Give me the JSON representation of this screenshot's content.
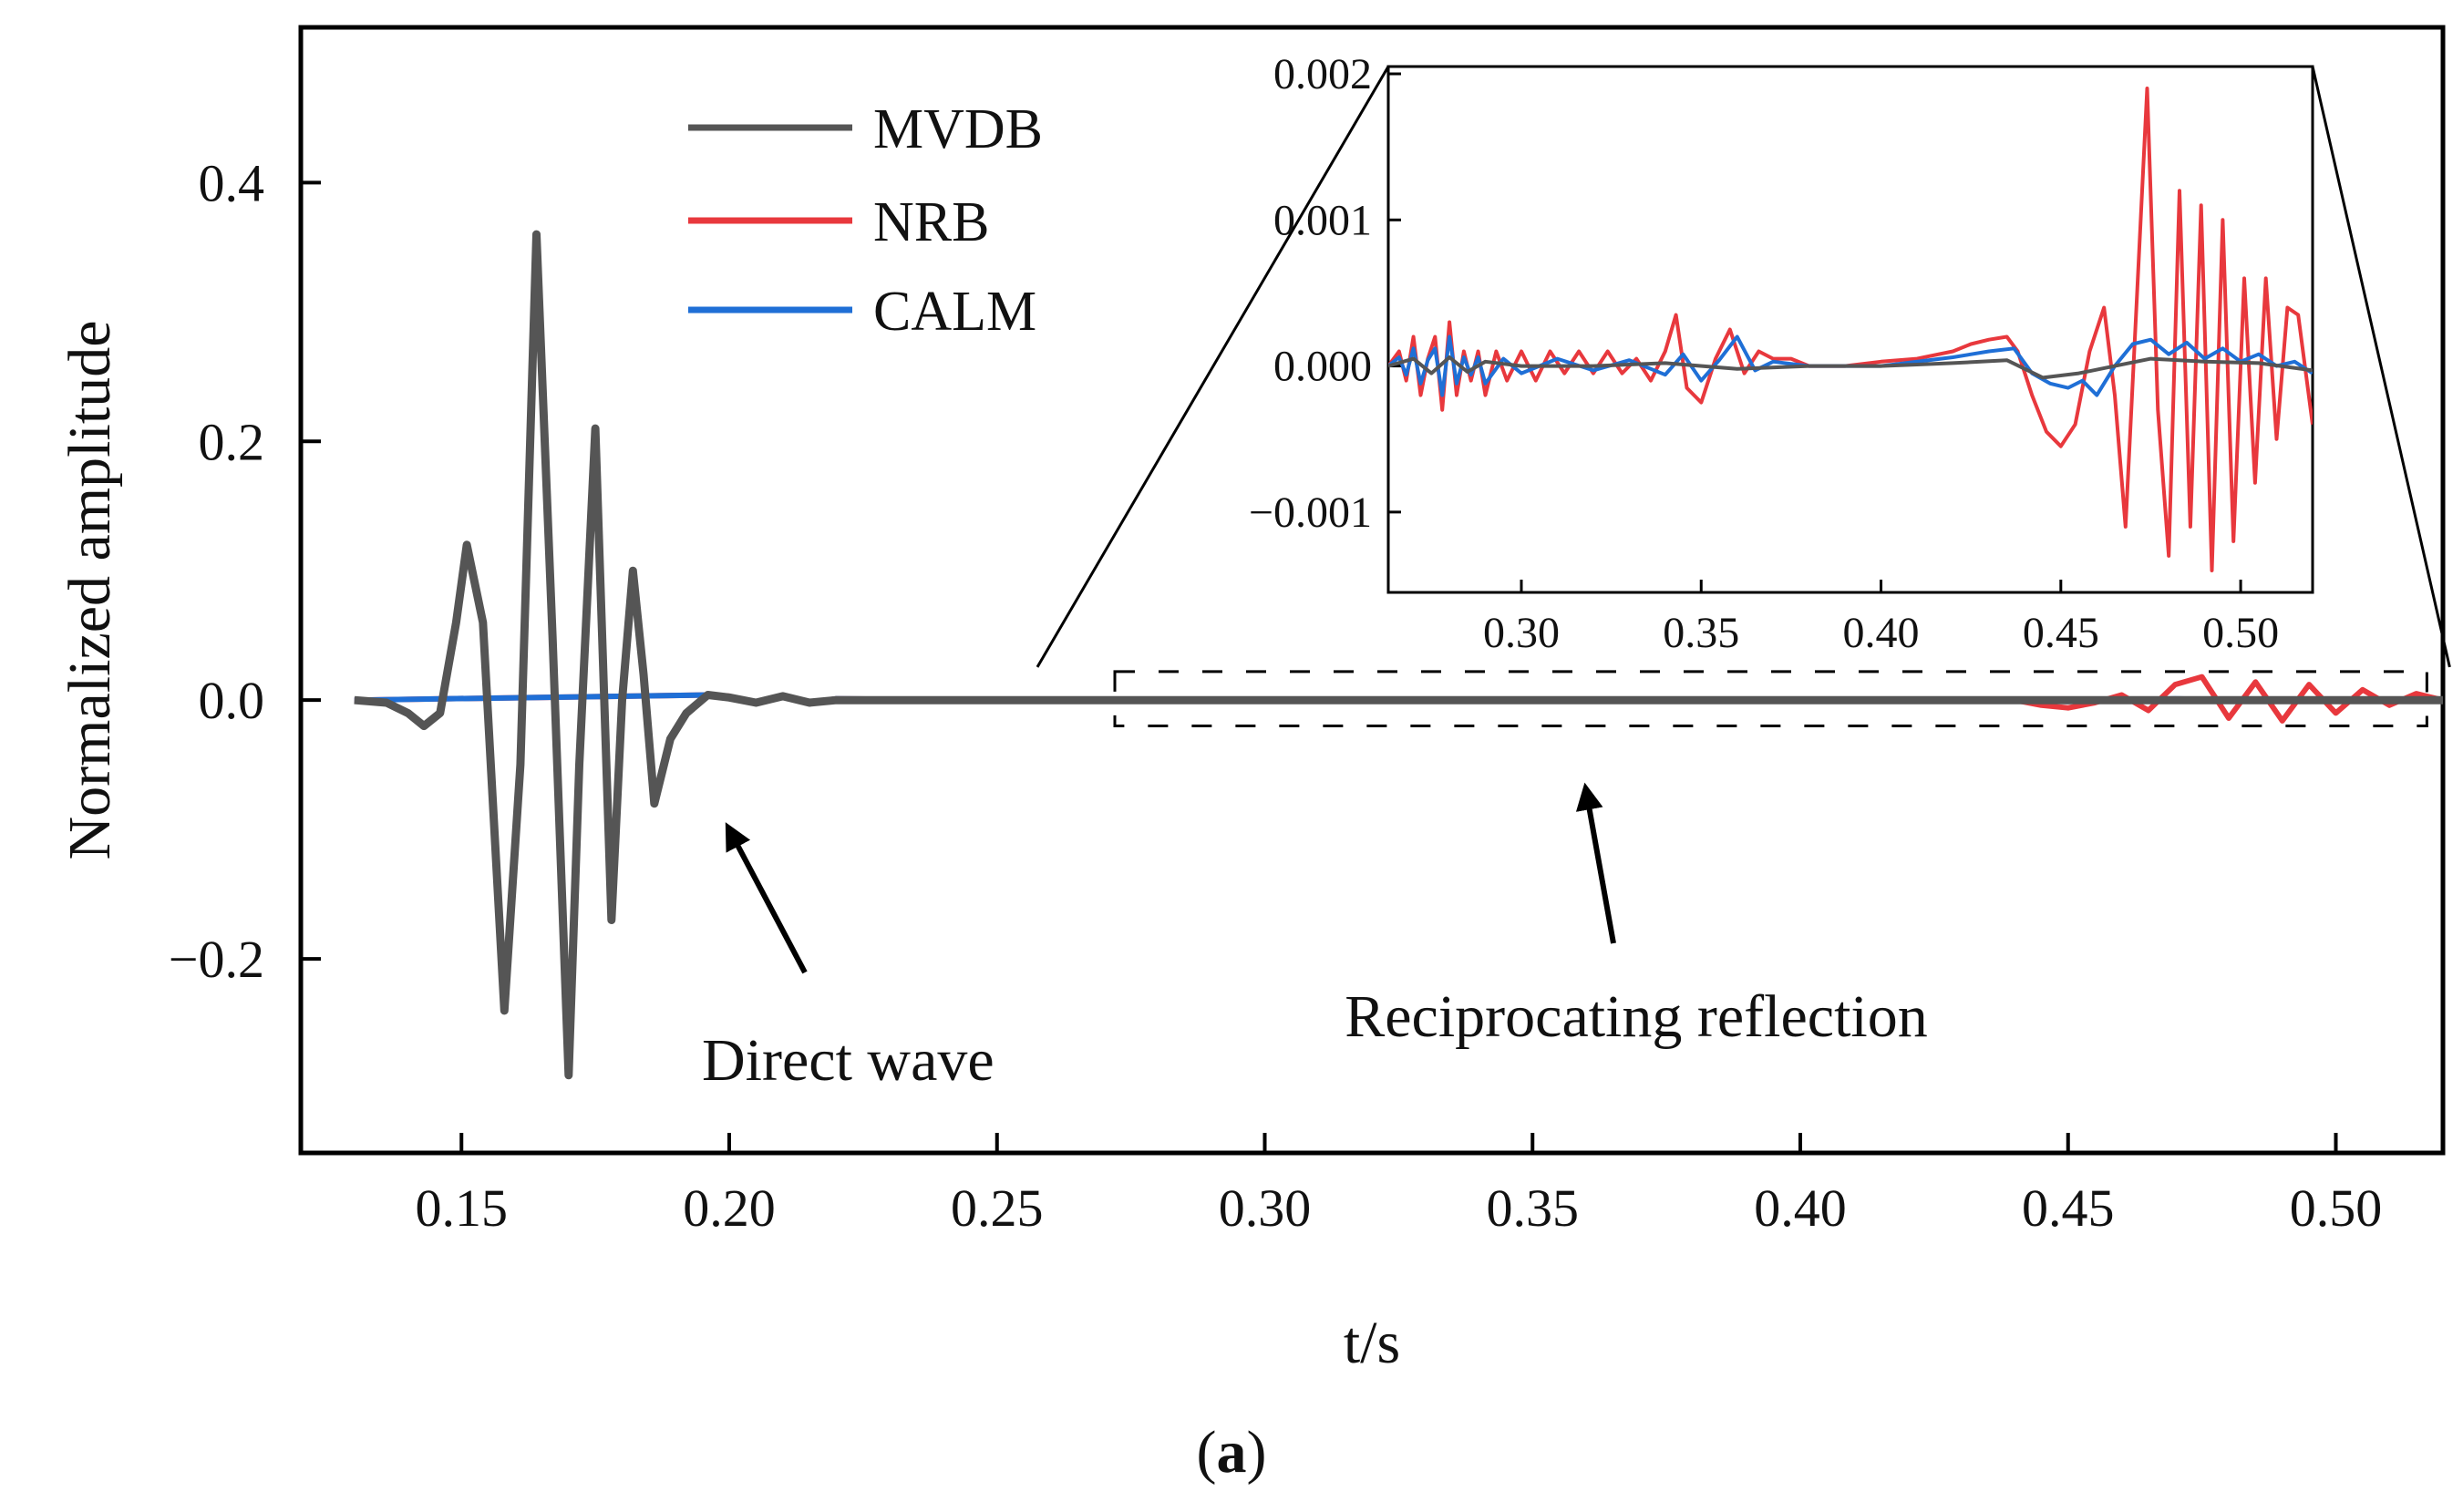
{
  "chart_data": [
    {
      "type": "line",
      "role": "main",
      "xlabel": "t/s",
      "ylabel": "Normalized amplitude",
      "xlim": [
        0.12,
        0.52
      ],
      "ylim": [
        -0.35,
        0.52
      ],
      "xticks": [
        0.15,
        0.2,
        0.25,
        0.3,
        0.35,
        0.4,
        0.45,
        0.5
      ],
      "xtick_labels": [
        "0.15",
        "0.20",
        "0.25",
        "0.30",
        "0.35",
        "0.40",
        "0.45",
        "0.50"
      ],
      "yticks": [
        -0.2,
        0.0,
        0.2,
        0.4
      ],
      "ytick_labels": [
        "−0.2",
        "0.0",
        "0.2",
        "0.4"
      ],
      "legend": {
        "placement": "top-left",
        "entries": [
          "MVDB",
          "NRB",
          "CALM"
        ]
      },
      "grid": false,
      "series": [
        {
          "name": "MVDB",
          "color": "#555555",
          "x": [
            0.13,
            0.136,
            0.14,
            0.143,
            0.146,
            0.149,
            0.151,
            0.154,
            0.158,
            0.161,
            0.164,
            0.167,
            0.17,
            0.172,
            0.175,
            0.178,
            0.18,
            0.182,
            0.184,
            0.186,
            0.189,
            0.192,
            0.196,
            0.2,
            0.205,
            0.21,
            0.215,
            0.22,
            0.23,
            0.25,
            0.3,
            0.35,
            0.4,
            0.45,
            0.5,
            0.52
          ],
          "y": [
            0.0,
            -0.002,
            -0.01,
            -0.02,
            -0.01,
            0.06,
            0.12,
            0.06,
            -0.24,
            -0.05,
            0.36,
            0.05,
            -0.29,
            -0.05,
            0.21,
            -0.17,
            0.0,
            0.1,
            0.02,
            -0.08,
            -0.03,
            -0.01,
            0.004,
            0.002,
            -0.002,
            0.003,
            -0.002,
            0.0,
            0.0,
            0.0,
            0.0,
            0.0,
            0.0,
            0.0,
            0.0,
            0.0
          ]
        },
        {
          "name": "NRB",
          "color": "#e8383d",
          "x": [
            0.13,
            0.196,
            0.2,
            0.205,
            0.21,
            0.215,
            0.22,
            0.25,
            0.35,
            0.44,
            0.445,
            0.45,
            0.455,
            0.46,
            0.465,
            0.47,
            0.475,
            0.48,
            0.485,
            0.49,
            0.495,
            0.5,
            0.505,
            0.51,
            0.515,
            0.52
          ],
          "y": [
            0.0,
            0.004,
            0.003,
            -0.002,
            0.003,
            -0.002,
            0.001,
            0.0,
            0.0,
            0.0,
            -0.004,
            -0.006,
            -0.002,
            0.004,
            -0.008,
            0.012,
            0.018,
            -0.014,
            0.014,
            -0.016,
            0.012,
            -0.01,
            0.008,
            -0.004,
            0.005,
            0.0
          ]
        },
        {
          "name": "CALM",
          "color": "#1f6fd6",
          "x": [
            0.13,
            0.196,
            0.2,
            0.205,
            0.21,
            0.215,
            0.22,
            0.25,
            0.35,
            0.44,
            0.45,
            0.46,
            0.47,
            0.48,
            0.49,
            0.5,
            0.51,
            0.52
          ],
          "y": [
            0.0,
            0.004,
            0.002,
            -0.002,
            0.003,
            -0.002,
            0.001,
            0.0,
            0.0,
            0.0,
            -0.001,
            0.0,
            0.001,
            0.0,
            0.0,
            0.0,
            0.0,
            0.0
          ]
        }
      ],
      "annotations": [
        {
          "text": "Direct wave",
          "arrow_to": [
            0.2,
            -0.1
          ]
        },
        {
          "text": "Reciprocating reflection",
          "arrow_to": [
            0.36,
            -0.07
          ]
        }
      ],
      "zoom_box": {
        "x": [
          0.272,
          0.517
        ],
        "y": [
          -0.02,
          0.022
        ]
      }
    },
    {
      "type": "line",
      "role": "inset",
      "xlim": [
        0.263,
        0.52
      ],
      "ylim": [
        -0.00155,
        0.00205
      ],
      "xticks": [
        0.3,
        0.35,
        0.4,
        0.45,
        0.5
      ],
      "xtick_labels": [
        "0.30",
        "0.35",
        "0.40",
        "0.45",
        "0.50"
      ],
      "yticks": [
        -0.001,
        0.0,
        0.001,
        0.002
      ],
      "ytick_labels": [
        "−0.001",
        "0.000",
        "0.001",
        "0.002"
      ],
      "series": [
        {
          "name": "MVDB",
          "color": "#555555",
          "x": [
            0.263,
            0.27,
            0.275,
            0.28,
            0.285,
            0.29,
            0.3,
            0.32,
            0.34,
            0.36,
            0.38,
            0.4,
            0.42,
            0.435,
            0.445,
            0.455,
            0.465,
            0.475,
            0.49,
            0.505,
            0.52
          ],
          "y": [
            0.0,
            5e-05,
            -5e-05,
            6e-05,
            -4e-05,
            3e-05,
            0.0,
            0.0,
            2e-05,
            -2e-05,
            0.0,
            0.0,
            2e-05,
            4e-05,
            -8e-05,
            -5e-05,
            0.0,
            5e-05,
            3e-05,
            2e-05,
            -3e-05
          ]
        },
        {
          "name": "NRB",
          "color": "#e8383d",
          "x": [
            0.263,
            0.266,
            0.268,
            0.27,
            0.272,
            0.274,
            0.276,
            0.278,
            0.28,
            0.282,
            0.284,
            0.286,
            0.288,
            0.29,
            0.293,
            0.296,
            0.3,
            0.304,
            0.308,
            0.312,
            0.316,
            0.32,
            0.324,
            0.328,
            0.332,
            0.336,
            0.34,
            0.343,
            0.346,
            0.35,
            0.354,
            0.358,
            0.362,
            0.366,
            0.37,
            0.375,
            0.38,
            0.39,
            0.4,
            0.41,
            0.42,
            0.425,
            0.43,
            0.435,
            0.438,
            0.442,
            0.446,
            0.45,
            0.454,
            0.458,
            0.462,
            0.465,
            0.468,
            0.471,
            0.474,
            0.477,
            0.48,
            0.483,
            0.486,
            0.489,
            0.492,
            0.495,
            0.498,
            0.501,
            0.504,
            0.507,
            0.51,
            0.513,
            0.516,
            0.52
          ],
          "y": [
            0.0,
            0.0001,
            -0.0001,
            0.0002,
            -0.0002,
            5e-05,
            0.0002,
            -0.0003,
            0.0003,
            -0.0002,
            0.0001,
            -0.0001,
            0.0001,
            -0.0002,
            0.0001,
            -0.0001,
            0.0001,
            -0.0001,
            0.0001,
            -5e-05,
            0.0001,
            -5e-05,
            0.0001,
            -5e-05,
            5e-05,
            -0.0001,
            0.0001,
            0.00035,
            -0.00015,
            -0.00025,
            5e-05,
            0.00025,
            -5e-05,
            0.0001,
            5e-05,
            5e-05,
            0.0,
            0.0,
            3e-05,
            5e-05,
            0.0001,
            0.00015,
            0.00018,
            0.0002,
            0.0001,
            -0.0002,
            -0.00045,
            -0.00055,
            -0.0004,
            0.0001,
            0.0004,
            -0.0002,
            -0.0011,
            0.0004,
            0.0019,
            -0.0003,
            -0.0013,
            0.0012,
            -0.0011,
            0.0011,
            -0.0014,
            0.001,
            -0.0012,
            0.0006,
            -0.0008,
            0.0006,
            -0.0005,
            0.0004,
            0.00035,
            -0.0004
          ]
        },
        {
          "name": "CALM",
          "color": "#1f6fd6",
          "x": [
            0.263,
            0.266,
            0.268,
            0.27,
            0.272,
            0.274,
            0.276,
            0.278,
            0.28,
            0.282,
            0.284,
            0.286,
            0.288,
            0.29,
            0.295,
            0.3,
            0.31,
            0.32,
            0.33,
            0.34,
            0.345,
            0.35,
            0.355,
            0.36,
            0.365,
            0.37,
            0.38,
            0.4,
            0.42,
            0.43,
            0.437,
            0.442,
            0.447,
            0.452,
            0.456,
            0.46,
            0.465,
            0.47,
            0.475,
            0.48,
            0.485,
            0.49,
            0.495,
            0.5,
            0.505,
            0.51,
            0.515,
            0.52
          ],
          "y": [
            0.0,
            6e-05,
            -6e-05,
            0.00012,
            -0.00012,
            4e-05,
            0.00012,
            -0.0002,
            0.0002,
            -0.00012,
            6e-05,
            -6e-05,
            6e-05,
            -0.00012,
            5e-05,
            -5e-05,
            5e-05,
            -3e-05,
            4e-05,
            -6e-05,
            8e-05,
            -0.0001,
            4e-05,
            0.0002,
            -3e-05,
            3e-05,
            0.0,
            0.0,
            6e-05,
            0.0001,
            0.00012,
            -5e-05,
            -0.00012,
            -0.00015,
            -0.0001,
            -0.0002,
            0.0,
            0.00015,
            0.00018,
            8e-05,
            0.00016,
            5e-05,
            0.00012,
            3e-05,
            8e-05,
            0.0,
            3e-05,
            -5e-05
          ]
        }
      ]
    }
  ],
  "panel_label": "a"
}
